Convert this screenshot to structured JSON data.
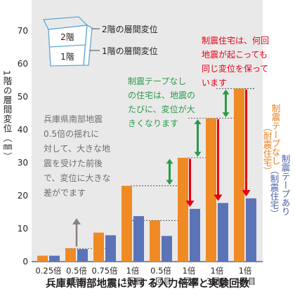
{
  "chart_data": {
    "type": "bar",
    "title": "",
    "xlabel": "兵庫県南部地震に対する入力倍率と実験回数",
    "ylabel": "1階の層間変位（㎜）",
    "ylim": [
      0,
      80
    ],
    "yticks": [
      0,
      10,
      20,
      30,
      40,
      50,
      60,
      70
    ],
    "categories": [
      [
        "0.25倍"
      ],
      [
        "0.5倍",
        "1回目"
      ],
      [
        "0.75倍"
      ],
      [
        "1倍",
        "1回目"
      ],
      [
        "0.5倍",
        "2回目"
      ],
      [
        "1倍",
        "2回目"
      ],
      [
        "1倍",
        "3回目"
      ],
      [
        "1倍",
        "4回目"
      ]
    ],
    "series": [
      {
        "name": "制震テープなし（耐震住宅）",
        "color": "#f08a24",
        "values": [
          1.8,
          4.0,
          8.8,
          23.0,
          12.5,
          31.5,
          43.5,
          52.5
        ]
      },
      {
        "name": "制震テープあり（制震住宅）",
        "color": "#5b73b7",
        "values": [
          1.8,
          3.8,
          8.0,
          13.8,
          7.8,
          16.0,
          17.8,
          19.2
        ]
      }
    ],
    "grid": false,
    "legend": "right"
  },
  "inset": {
    "floor2": "2階",
    "floor1": "1階",
    "label_floor2": "2階の層間変位",
    "label_floor1": "1階の層間変位"
  },
  "annotations": {
    "gray": [
      "兵庫県南部地震",
      "0.5倍の揺れに",
      "対して、大きな地",
      "震を受けた前後",
      "で、変位に大きな",
      "差がでます"
    ],
    "green": [
      "制震テープなし",
      "の住宅は、地震の",
      "たびに、変位が大",
      "きくなります"
    ],
    "red": [
      "制震住宅は、何回",
      "地震が起こっても",
      "同じ変位を保って",
      "います"
    ]
  },
  "legend_labels": {
    "orange_main": "制震テープなし",
    "orange_sub": "（耐震住宅）",
    "blue_main": "制震テープあり",
    "blue_sub": "（制震住宅）"
  },
  "colors": {
    "panel_bg": "#eae9e9",
    "orange": "#f08a24",
    "blue": "#5b73b7",
    "green": "#2a9a4a",
    "red": "#e60012",
    "gray_arrow": "#8a8080",
    "text_gray": "#6e6e6e",
    "text_orange": "#e87f1a",
    "text_blue": "#4a5fa8",
    "inset_outline": "#5aa8d8"
  }
}
